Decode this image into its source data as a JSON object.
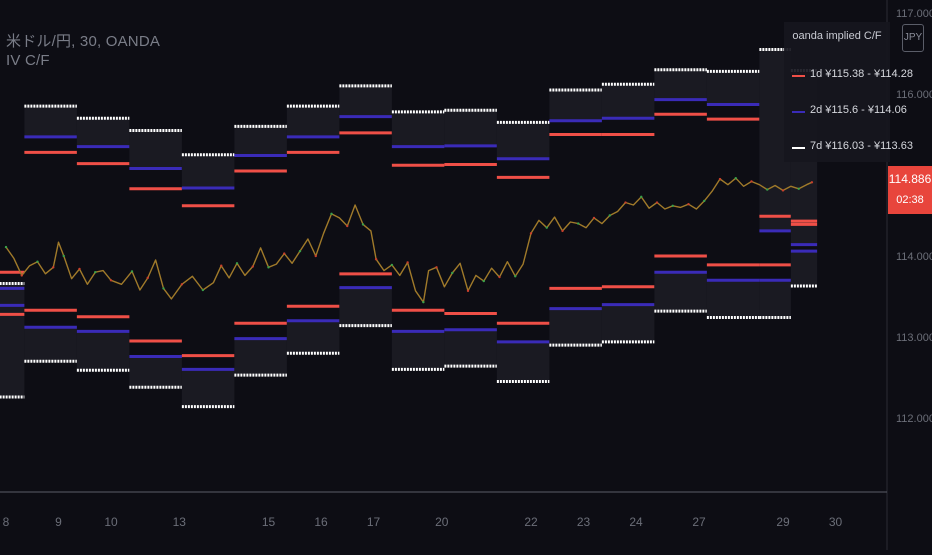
{
  "header": {
    "symbol_line": "米ドル/円, 30, OANDA",
    "indicator_line": "IV C/F"
  },
  "currency_badge": "JPY",
  "legend": {
    "title": "oanda implied C/F",
    "items": [
      {
        "label": "1d  ¥115.38 - ¥114.28",
        "color": "#ef4f47"
      },
      {
        "label": "2d  ¥115.6 - ¥114.06",
        "color": "#3a2bb8"
      },
      {
        "label": "7d  ¥116.03 - ¥113.63",
        "color": "#ffffff"
      }
    ]
  },
  "last_price": {
    "value": "114.886",
    "countdown": "02:38",
    "color": "#e8453c"
  },
  "colors": {
    "background": "#0d0d14",
    "price_line": "#c8a040",
    "band_fill": "#1a1a22",
    "axis_text": "#6b6e78"
  },
  "chart_data": {
    "type": "line",
    "title": "米ドル/円, 30, OANDA",
    "ylim": [
      111.62,
      117.02
    ],
    "y_ticks": [
      {
        "value": 117.0,
        "label": "117.000"
      },
      {
        "value": 116.0,
        "label": "116.000"
      },
      {
        "value": 115.0,
        "label": "115.000"
      },
      {
        "value": 114.0,
        "label": "114.000"
      },
      {
        "value": 113.0,
        "label": "113.000"
      },
      {
        "value": 112.0,
        "label": "112.000"
      }
    ],
    "x_ticks": [
      "8",
      "9",
      "10",
      "13",
      "15",
      "16",
      "17",
      "20",
      "22",
      "23",
      "24",
      "27",
      "29",
      "30"
    ],
    "x_tick_index": [
      0,
      1,
      2,
      3.3,
      5,
      6,
      7,
      8.3,
      10,
      11,
      12,
      13.2,
      14.8,
      15.8
    ],
    "price_series": [
      [
        0.0,
        114.11
      ],
      [
        0.15,
        113.97
      ],
      [
        0.3,
        113.76
      ],
      [
        0.45,
        113.88
      ],
      [
        0.6,
        113.93
      ],
      [
        0.75,
        113.78
      ],
      [
        0.9,
        113.86
      ],
      [
        1.0,
        114.17
      ],
      [
        1.1,
        114.0
      ],
      [
        1.25,
        113.72
      ],
      [
        1.4,
        113.84
      ],
      [
        1.55,
        113.65
      ],
      [
        1.7,
        113.8
      ],
      [
        1.85,
        113.82
      ],
      [
        2.0,
        113.7
      ],
      [
        2.2,
        113.65
      ],
      [
        2.4,
        113.81
      ],
      [
        2.55,
        113.58
      ],
      [
        2.7,
        113.73
      ],
      [
        2.85,
        113.95
      ],
      [
        3.0,
        113.6
      ],
      [
        3.15,
        113.47
      ],
      [
        3.35,
        113.65
      ],
      [
        3.55,
        113.75
      ],
      [
        3.75,
        113.58
      ],
      [
        3.95,
        113.67
      ],
      [
        4.1,
        113.88
      ],
      [
        4.25,
        113.73
      ],
      [
        4.4,
        113.91
      ],
      [
        4.55,
        113.76
      ],
      [
        4.7,
        113.87
      ],
      [
        4.85,
        114.1
      ],
      [
        5.0,
        113.86
      ],
      [
        5.15,
        113.9
      ],
      [
        5.3,
        114.03
      ],
      [
        5.45,
        113.91
      ],
      [
        5.6,
        114.06
      ],
      [
        5.75,
        114.21
      ],
      [
        5.9,
        114.0
      ],
      [
        6.05,
        114.28
      ],
      [
        6.2,
        114.52
      ],
      [
        6.35,
        114.47
      ],
      [
        6.5,
        114.37
      ],
      [
        6.65,
        114.63
      ],
      [
        6.8,
        114.39
      ],
      [
        6.95,
        114.31
      ],
      [
        7.05,
        113.96
      ],
      [
        7.2,
        113.82
      ],
      [
        7.35,
        113.89
      ],
      [
        7.5,
        113.76
      ],
      [
        7.65,
        113.92
      ],
      [
        7.8,
        113.57
      ],
      [
        7.95,
        113.43
      ],
      [
        8.05,
        113.82
      ],
      [
        8.2,
        113.86
      ],
      [
        8.35,
        113.62
      ],
      [
        8.5,
        113.79
      ],
      [
        8.65,
        113.91
      ],
      [
        8.8,
        113.57
      ],
      [
        8.95,
        113.76
      ],
      [
        9.1,
        113.69
      ],
      [
        9.25,
        113.85
      ],
      [
        9.4,
        113.74
      ],
      [
        9.55,
        113.93
      ],
      [
        9.7,
        113.75
      ],
      [
        9.85,
        113.9
      ],
      [
        10.0,
        114.28
      ],
      [
        10.15,
        114.44
      ],
      [
        10.3,
        114.35
      ],
      [
        10.45,
        114.48
      ],
      [
        10.6,
        114.31
      ],
      [
        10.75,
        114.42
      ],
      [
        10.9,
        114.4
      ],
      [
        11.05,
        114.35
      ],
      [
        11.2,
        114.47
      ],
      [
        11.35,
        114.4
      ],
      [
        11.5,
        114.5
      ],
      [
        11.65,
        114.55
      ],
      [
        11.8,
        114.66
      ],
      [
        11.95,
        114.63
      ],
      [
        12.1,
        114.73
      ],
      [
        12.25,
        114.59
      ],
      [
        12.4,
        114.66
      ],
      [
        12.55,
        114.58
      ],
      [
        12.7,
        114.62
      ],
      [
        12.85,
        114.6
      ],
      [
        13.0,
        114.64
      ],
      [
        13.15,
        114.58
      ],
      [
        13.3,
        114.68
      ],
      [
        13.45,
        114.8
      ],
      [
        13.6,
        114.95
      ],
      [
        13.75,
        114.88
      ],
      [
        13.9,
        114.96
      ],
      [
        14.05,
        114.86
      ],
      [
        14.2,
        114.92
      ],
      [
        14.35,
        114.88
      ],
      [
        14.5,
        114.82
      ],
      [
        14.65,
        114.87
      ],
      [
        14.8,
        114.81
      ],
      [
        14.95,
        114.86
      ],
      [
        15.1,
        114.83
      ],
      [
        15.25,
        114.88
      ],
      [
        15.35,
        114.91
      ]
    ],
    "bands": [
      {
        "x0": -0.35,
        "x1": 0.35,
        "d1": [
          113.28,
          113.8
        ],
        "d2": [
          113.6,
          113.39
        ],
        "d7": [
          112.26,
          113.66
        ]
      },
      {
        "x0": 0.35,
        "x1": 1.35,
        "d1": [
          115.28,
          113.33
        ],
        "d2": [
          115.47,
          113.12
        ],
        "d7": [
          115.85,
          112.7
        ]
      },
      {
        "x0": 1.35,
        "x1": 2.35,
        "d1": [
          115.14,
          113.25
        ],
        "d2": [
          115.35,
          113.07
        ],
        "d7": [
          115.7,
          112.59
        ]
      },
      {
        "x0": 2.35,
        "x1": 3.35,
        "d1": [
          114.83,
          112.95
        ],
        "d2": [
          115.08,
          112.76
        ],
        "d7": [
          115.55,
          112.38
        ]
      },
      {
        "x0": 3.35,
        "x1": 4.35,
        "d1": [
          114.62,
          112.77
        ],
        "d2": [
          114.84,
          112.6
        ],
        "d7": [
          115.25,
          112.14
        ]
      },
      {
        "x0": 4.35,
        "x1": 5.35,
        "d1": [
          115.05,
          113.17
        ],
        "d2": [
          115.24,
          112.98
        ],
        "d7": [
          115.6,
          112.53
        ]
      },
      {
        "x0": 5.35,
        "x1": 6.35,
        "d1": [
          115.28,
          113.38
        ],
        "d2": [
          115.47,
          113.2
        ],
        "d7": [
          115.85,
          112.8
        ]
      },
      {
        "x0": 6.35,
        "x1": 7.35,
        "d1": [
          115.52,
          113.78
        ],
        "d2": [
          115.72,
          113.61
        ],
        "d7": [
          116.1,
          113.14
        ]
      },
      {
        "x0": 7.35,
        "x1": 8.35,
        "d1": [
          115.12,
          113.33
        ],
        "d2": [
          115.35,
          113.07
        ],
        "d7": [
          115.78,
          112.6
        ]
      },
      {
        "x0": 8.35,
        "x1": 9.35,
        "d1": [
          115.13,
          113.29
        ],
        "d2": [
          115.36,
          113.09
        ],
        "d7": [
          115.8,
          112.64
        ]
      },
      {
        "x0": 9.35,
        "x1": 10.35,
        "d1": [
          114.97,
          113.17
        ],
        "d2": [
          115.2,
          112.94
        ],
        "d7": [
          115.65,
          112.45
        ]
      },
      {
        "x0": 10.35,
        "x1": 11.35,
        "d1": [
          115.5,
          113.6
        ],
        "d2": [
          115.67,
          113.35
        ],
        "d7": [
          116.05,
          112.9
        ]
      },
      {
        "x0": 11.35,
        "x1": 12.35,
        "d1": [
          115.5,
          113.62
        ],
        "d2": [
          115.7,
          113.4
        ],
        "d7": [
          116.12,
          112.94
        ]
      },
      {
        "x0": 12.35,
        "x1": 13.35,
        "d1": [
          115.75,
          114.0
        ],
        "d2": [
          115.93,
          113.8
        ],
        "d7": [
          116.3,
          113.32
        ]
      },
      {
        "x0": 13.35,
        "x1": 14.35,
        "d1": [
          115.69,
          113.89
        ],
        "d2": [
          115.87,
          113.7
        ],
        "d7": [
          116.28,
          113.24
        ]
      },
      {
        "x0": 14.35,
        "x1": 14.95,
        "d1": [
          114.49,
          113.89
        ],
        "d2": [
          114.31,
          113.7
        ],
        "d7": [
          116.55,
          113.24
        ]
      },
      {
        "x0": 14.95,
        "x1": 15.45,
        "d1": [
          114.43,
          114.39
        ],
        "d2": [
          114.14,
          114.06
        ],
        "d7": [
          116.29,
          113.63
        ]
      }
    ]
  }
}
